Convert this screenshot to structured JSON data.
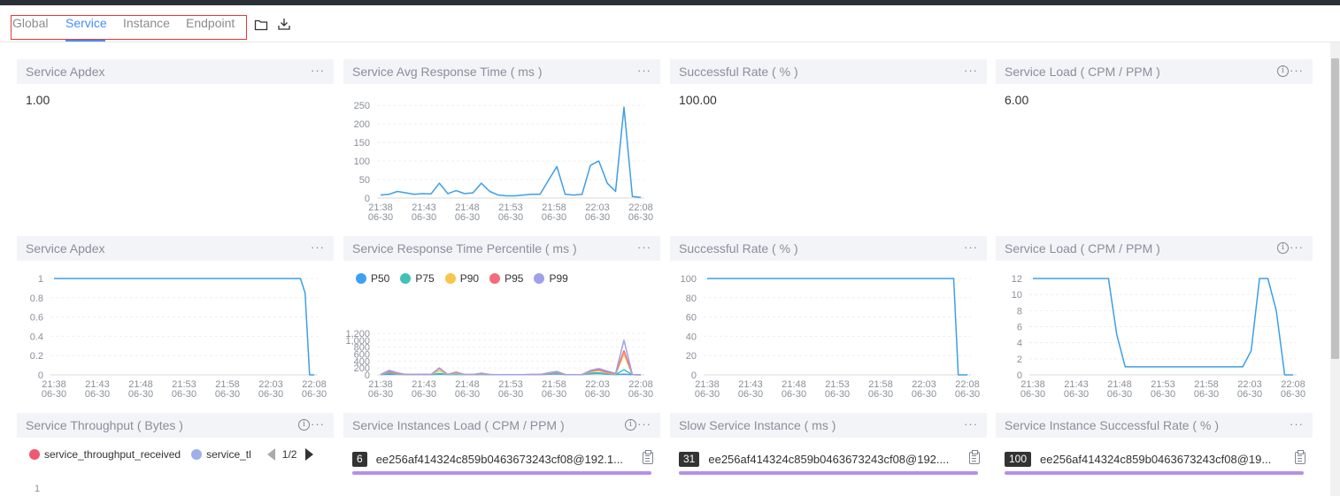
{
  "tabs": [
    {
      "label": "Global",
      "active": false
    },
    {
      "label": "Service",
      "active": true
    },
    {
      "label": "Instance",
      "active": false
    },
    {
      "label": "Endpoint",
      "active": false
    }
  ],
  "toolbar": {
    "icons": [
      "folder-icon",
      "download-icon"
    ]
  },
  "colors": {
    "accent": "#448dfe",
    "line": "#3c9fe6",
    "p50": "#3e9ff4",
    "p75": "#3fc1b8",
    "p90": "#f7c64c",
    "p95": "#f46c7c",
    "p99": "#9fa1e8",
    "bar": "#b78fe8"
  },
  "widgets": {
    "apdex_value": {
      "title": "Service Apdex",
      "value": "1.00"
    },
    "avg_resp": {
      "title": "Service Avg Response Time ( ms )"
    },
    "success_value": {
      "title": "Successful Rate ( % )",
      "value": "100.00"
    },
    "load_value": {
      "title": "Service Load ( CPM / PPM )",
      "value": "6.00"
    },
    "apdex_chart": {
      "title": "Service Apdex"
    },
    "percentile": {
      "title": "Service Response Time Percentile ( ms )"
    },
    "success_chart": {
      "title": "Successful Rate ( % )"
    },
    "load_chart": {
      "title": "Service Load ( CPM / PPM )"
    },
    "throughput": {
      "title": "Service Throughput ( Bytes )",
      "legend": [
        "service_throughput_received",
        "service_tl"
      ],
      "page": "1/2",
      "first_tick": "1"
    },
    "inst_load": {
      "title": "Service Instances Load ( CPM / PPM )",
      "badge": "6",
      "instance": "ee256af414324c859b0463673243cf08@192.1..."
    },
    "slow_inst": {
      "title": "Slow Service Instance ( ms )",
      "badge": "31",
      "instance": "ee256af414324c859b0463673243cf08@192...."
    },
    "inst_success": {
      "title": "Service Instance Successful Rate ( % )",
      "badge": "100",
      "instance": "ee256af414324c859b0463673243cf08@19..."
    }
  },
  "chart_data": [
    {
      "id": "avg_resp",
      "type": "line",
      "x_ticks": [
        [
          "21:38",
          "06-30"
        ],
        [
          "21:43",
          "06-30"
        ],
        [
          "21:48",
          "06-30"
        ],
        [
          "21:53",
          "06-30"
        ],
        [
          "21:58",
          "06-30"
        ],
        [
          "22:03",
          "06-30"
        ],
        [
          "22:08",
          "06-30"
        ]
      ],
      "y_ticks": [
        "0",
        "50",
        "100",
        "150",
        "200",
        "250"
      ],
      "ylim": [
        0,
        260
      ],
      "series": [
        {
          "values": [
            8,
            10,
            18,
            14,
            10,
            12,
            11,
            40,
            12,
            20,
            12,
            14,
            40,
            18,
            8,
            6,
            6,
            8,
            10,
            10,
            48,
            85,
            10,
            8,
            10,
            88,
            100,
            40,
            18,
            245,
            4,
            2
          ]
        }
      ]
    },
    {
      "id": "apdex_chart",
      "type": "line",
      "x_ticks": [
        [
          "21:38",
          "06-30"
        ],
        [
          "21:43",
          "06-30"
        ],
        [
          "21:48",
          "06-30"
        ],
        [
          "21:53",
          "06-30"
        ],
        [
          "21:58",
          "06-30"
        ],
        [
          "22:03",
          "06-30"
        ],
        [
          "22:08",
          "06-30"
        ]
      ],
      "y_ticks": [
        "0",
        "0.2",
        "0.4",
        "0.6",
        "0.8",
        "1"
      ],
      "ylim": [
        0,
        1
      ],
      "series": [
        {
          "values": [
            1,
            1,
            1,
            1,
            1,
            1,
            1,
            1,
            1,
            1,
            1,
            1,
            1,
            1,
            1,
            1,
            1,
            1,
            1,
            1,
            1,
            1,
            1,
            1,
            1,
            1,
            1,
            1,
            1,
            1,
            1,
            1,
            1,
            1,
            1,
            1,
            1,
            1,
            1,
            1,
            1,
            1,
            1,
            1,
            1,
            1,
            1,
            1,
            1,
            1,
            1,
            1,
            1,
            1,
            1,
            0.85,
            0,
            0
          ]
        }
      ]
    },
    {
      "id": "percentile",
      "type": "line",
      "legend": [
        "P50",
        "P75",
        "P90",
        "P95",
        "P99"
      ],
      "x_ticks": [
        [
          "21:38",
          "06-30"
        ],
        [
          "21:43",
          "06-30"
        ],
        [
          "21:48",
          "06-30"
        ],
        [
          "21:53",
          "06-30"
        ],
        [
          "21:58",
          "06-30"
        ],
        [
          "22:03",
          "06-30"
        ],
        [
          "22:08",
          "06-30"
        ]
      ],
      "y_ticks": [
        "0",
        "200",
        "400",
        "600",
        "800",
        "1,000",
        "1,200"
      ],
      "ylim": [
        0,
        1250
      ],
      "series": [
        {
          "name": "P50",
          "values": [
            10,
            20,
            15,
            12,
            10,
            12,
            10,
            20,
            12,
            15,
            10,
            10,
            12,
            10,
            8,
            8,
            8,
            8,
            10,
            10,
            20,
            30,
            10,
            8,
            10,
            30,
            40,
            20,
            10,
            20,
            5,
            3
          ]
        },
        {
          "name": "P75",
          "values": [
            10,
            60,
            20,
            12,
            10,
            12,
            10,
            40,
            12,
            20,
            10,
            10,
            20,
            10,
            8,
            8,
            8,
            8,
            10,
            10,
            30,
            50,
            10,
            8,
            10,
            50,
            60,
            30,
            10,
            150,
            5,
            3
          ]
        },
        {
          "name": "P90",
          "values": [
            10,
            90,
            30,
            12,
            10,
            12,
            10,
            120,
            12,
            40,
            10,
            10,
            30,
            10,
            8,
            8,
            8,
            8,
            10,
            10,
            40,
            80,
            10,
            8,
            10,
            90,
            120,
            60,
            20,
            600,
            5,
            3
          ]
        },
        {
          "name": "P95",
          "values": [
            10,
            100,
            40,
            12,
            10,
            12,
            10,
            200,
            12,
            80,
            10,
            10,
            40,
            10,
            8,
            8,
            8,
            8,
            10,
            10,
            50,
            90,
            10,
            8,
            10,
            110,
            150,
            80,
            30,
            700,
            5,
            3
          ]
        },
        {
          "name": "P99",
          "values": [
            10,
            130,
            60,
            12,
            10,
            12,
            10,
            180,
            12,
            60,
            10,
            10,
            50,
            10,
            8,
            8,
            8,
            8,
            10,
            10,
            60,
            100,
            10,
            8,
            10,
            130,
            180,
            110,
            40,
            1000,
            5,
            3
          ]
        }
      ]
    },
    {
      "id": "success_chart",
      "type": "line",
      "x_ticks": [
        [
          "21:38",
          "06-30"
        ],
        [
          "21:43",
          "06-30"
        ],
        [
          "21:48",
          "06-30"
        ],
        [
          "21:53",
          "06-30"
        ],
        [
          "21:58",
          "06-30"
        ],
        [
          "22:03",
          "06-30"
        ],
        [
          "22:08",
          "06-30"
        ]
      ],
      "y_ticks": [
        "0",
        "20",
        "40",
        "60",
        "80",
        "100"
      ],
      "ylim": [
        0,
        100
      ],
      "series": [
        {
          "values": [
            100,
            100,
            100,
            100,
            100,
            100,
            100,
            100,
            100,
            100,
            100,
            100,
            100,
            100,
            100,
            100,
            100,
            100,
            100,
            100,
            100,
            100,
            100,
            100,
            100,
            100,
            100,
            100,
            100,
            100,
            100,
            100,
            100,
            100,
            100,
            100,
            100,
            100,
            100,
            100,
            100,
            100,
            100,
            100,
            100,
            100,
            100,
            100,
            100,
            100,
            100,
            100,
            100,
            100,
            100,
            0,
            0,
            0
          ]
        }
      ]
    },
    {
      "id": "load_chart",
      "type": "line",
      "x_ticks": [
        [
          "21:38",
          "06-30"
        ],
        [
          "21:43",
          "06-30"
        ],
        [
          "21:48",
          "06-30"
        ],
        [
          "21:53",
          "06-30"
        ],
        [
          "21:58",
          "06-30"
        ],
        [
          "22:03",
          "06-30"
        ],
        [
          "22:08",
          "06-30"
        ]
      ],
      "y_ticks": [
        "0",
        "2",
        "4",
        "6",
        "8",
        "10",
        "12"
      ],
      "ylim": [
        0,
        12
      ],
      "series": [
        {
          "values": [
            12,
            12,
            12,
            12,
            12,
            12,
            12,
            12,
            12,
            12,
            5,
            1,
            1,
            1,
            1,
            1,
            1,
            1,
            1,
            1,
            1,
            1,
            1,
            1,
            1,
            1,
            3,
            12,
            12,
            8,
            0,
            0
          ]
        }
      ]
    }
  ]
}
